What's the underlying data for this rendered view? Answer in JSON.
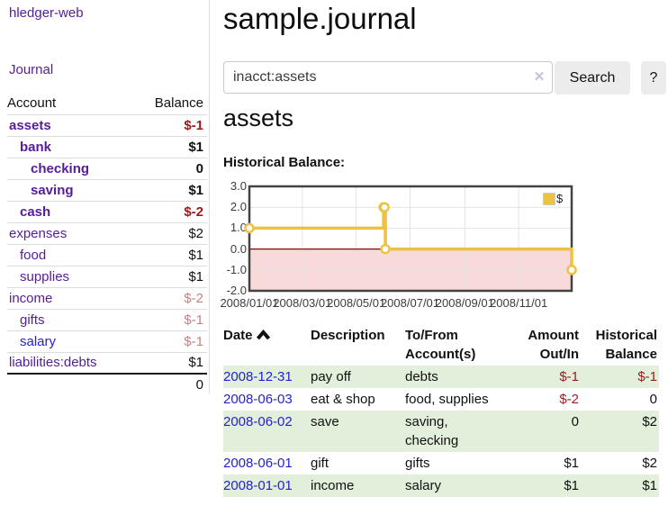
{
  "sidebar": {
    "app_title": "hledger-web",
    "nav": {
      "journal": "Journal"
    },
    "balance_table": {
      "headers": {
        "account": "Account",
        "balance": "Balance"
      },
      "rows": [
        {
          "account": "assets",
          "balance": "$-1"
        },
        {
          "account": "bank",
          "balance": "$1"
        },
        {
          "account": "checking",
          "balance": "0"
        },
        {
          "account": "saving",
          "balance": "$1"
        },
        {
          "account": "cash",
          "balance": "$-2"
        },
        {
          "account": "expenses",
          "balance": "$2"
        },
        {
          "account": "food",
          "balance": "$1"
        },
        {
          "account": "supplies",
          "balance": "$1"
        },
        {
          "account": "income",
          "balance": "$-2"
        },
        {
          "account": "gifts",
          "balance": "$-1"
        },
        {
          "account": "salary",
          "balance": "$-1"
        },
        {
          "account": "liabilities:debts",
          "balance": "$1"
        }
      ],
      "total": "0"
    }
  },
  "main": {
    "title": "sample.journal",
    "search": {
      "value": "inacct:assets",
      "clear_icon": "✕",
      "search_button": "Search",
      "help_button": "?"
    },
    "account_heading": "assets",
    "chart_label": "Historical Balance:"
  },
  "chart_data": {
    "type": "line",
    "step": true,
    "title": "Historical Balance",
    "series": [
      {
        "name": "$",
        "x": [
          "2008-01-01",
          "2008-06-01",
          "2008-06-02",
          "2008-06-03",
          "2008-12-31"
        ],
        "values": [
          1,
          2,
          2,
          0,
          -1
        ]
      }
    ],
    "x_range": [
      "2008-01-01",
      "2008-12-31"
    ],
    "ylim": [
      -2,
      3
    ],
    "yticks": [
      "3.0",
      "2.0",
      "1.0",
      "0.0",
      "-1.0",
      "-2.0"
    ],
    "xticks": [
      "2008/01/01",
      "2008/03/01",
      "2008/05/01",
      "2008/07/01",
      "2008/09/01",
      "2008/11/01"
    ],
    "grid": true,
    "legend": {
      "label": "$",
      "position": "top-right"
    },
    "colors": {
      "line": "#edc240",
      "marker_fill": "#ffffff",
      "negative_fill": "#f9dada",
      "zero_line": "#8b0000",
      "gridline": "#e3e3e3",
      "border": "#434343"
    }
  },
  "register_table": {
    "headers": {
      "date": "Date",
      "description": "Description",
      "accounts": "To/From Account(s)",
      "amount": "Amount Out/In",
      "balance": "Historical Balance"
    },
    "sort_icon": "chevron-up",
    "rows": [
      {
        "date": "2008-12-31",
        "description": "pay off",
        "accounts": "debts",
        "amount": "$-1",
        "balance": "$-1"
      },
      {
        "date": "2008-06-03",
        "description": "eat & shop",
        "accounts": "food, supplies",
        "amount": "$-2",
        "balance": "0"
      },
      {
        "date": "2008-06-02",
        "description": "save",
        "accounts": "saving, checking",
        "amount": "0",
        "balance": "$2"
      },
      {
        "date": "2008-06-01",
        "description": "gift",
        "accounts": "gifts",
        "amount": "$1",
        "balance": "$2"
      },
      {
        "date": "2008-01-01",
        "description": "income",
        "accounts": "salary",
        "amount": "$1",
        "balance": "$1"
      }
    ]
  }
}
